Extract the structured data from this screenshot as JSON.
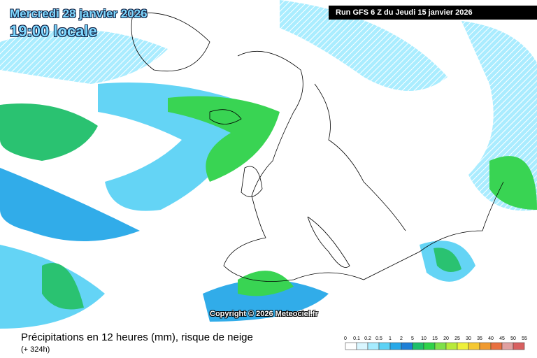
{
  "header": {
    "date": "Mercredi 28 janvier 2026",
    "time": "19:00 locale",
    "run": "Run GFS 6 Z du Jeudi 15 janvier 2026"
  },
  "copyright": "Copyright © 2026 Meteociel.fr",
  "footer": {
    "title": "Précipitations en 12 heures (mm), risque de neige",
    "lead": "(+ 324h)"
  },
  "legend": {
    "labels": [
      "0",
      "0.1",
      "0.2",
      "0.5",
      "1",
      "2",
      "5",
      "10",
      "15",
      "20",
      "25",
      "30",
      "35",
      "40",
      "45",
      "50",
      "55"
    ],
    "colors": [
      "#ffffff",
      "#d9f6ff",
      "#a6ecff",
      "#5cd2f5",
      "#26a8e8",
      "#1e7fd6",
      "#1fbf6a",
      "#2fd24a",
      "#7ee04a",
      "#b8ea3a",
      "#eef03a",
      "#f5c832",
      "#f09a30",
      "#e87040",
      "#e0a0a0",
      "#d86060"
    ]
  }
}
